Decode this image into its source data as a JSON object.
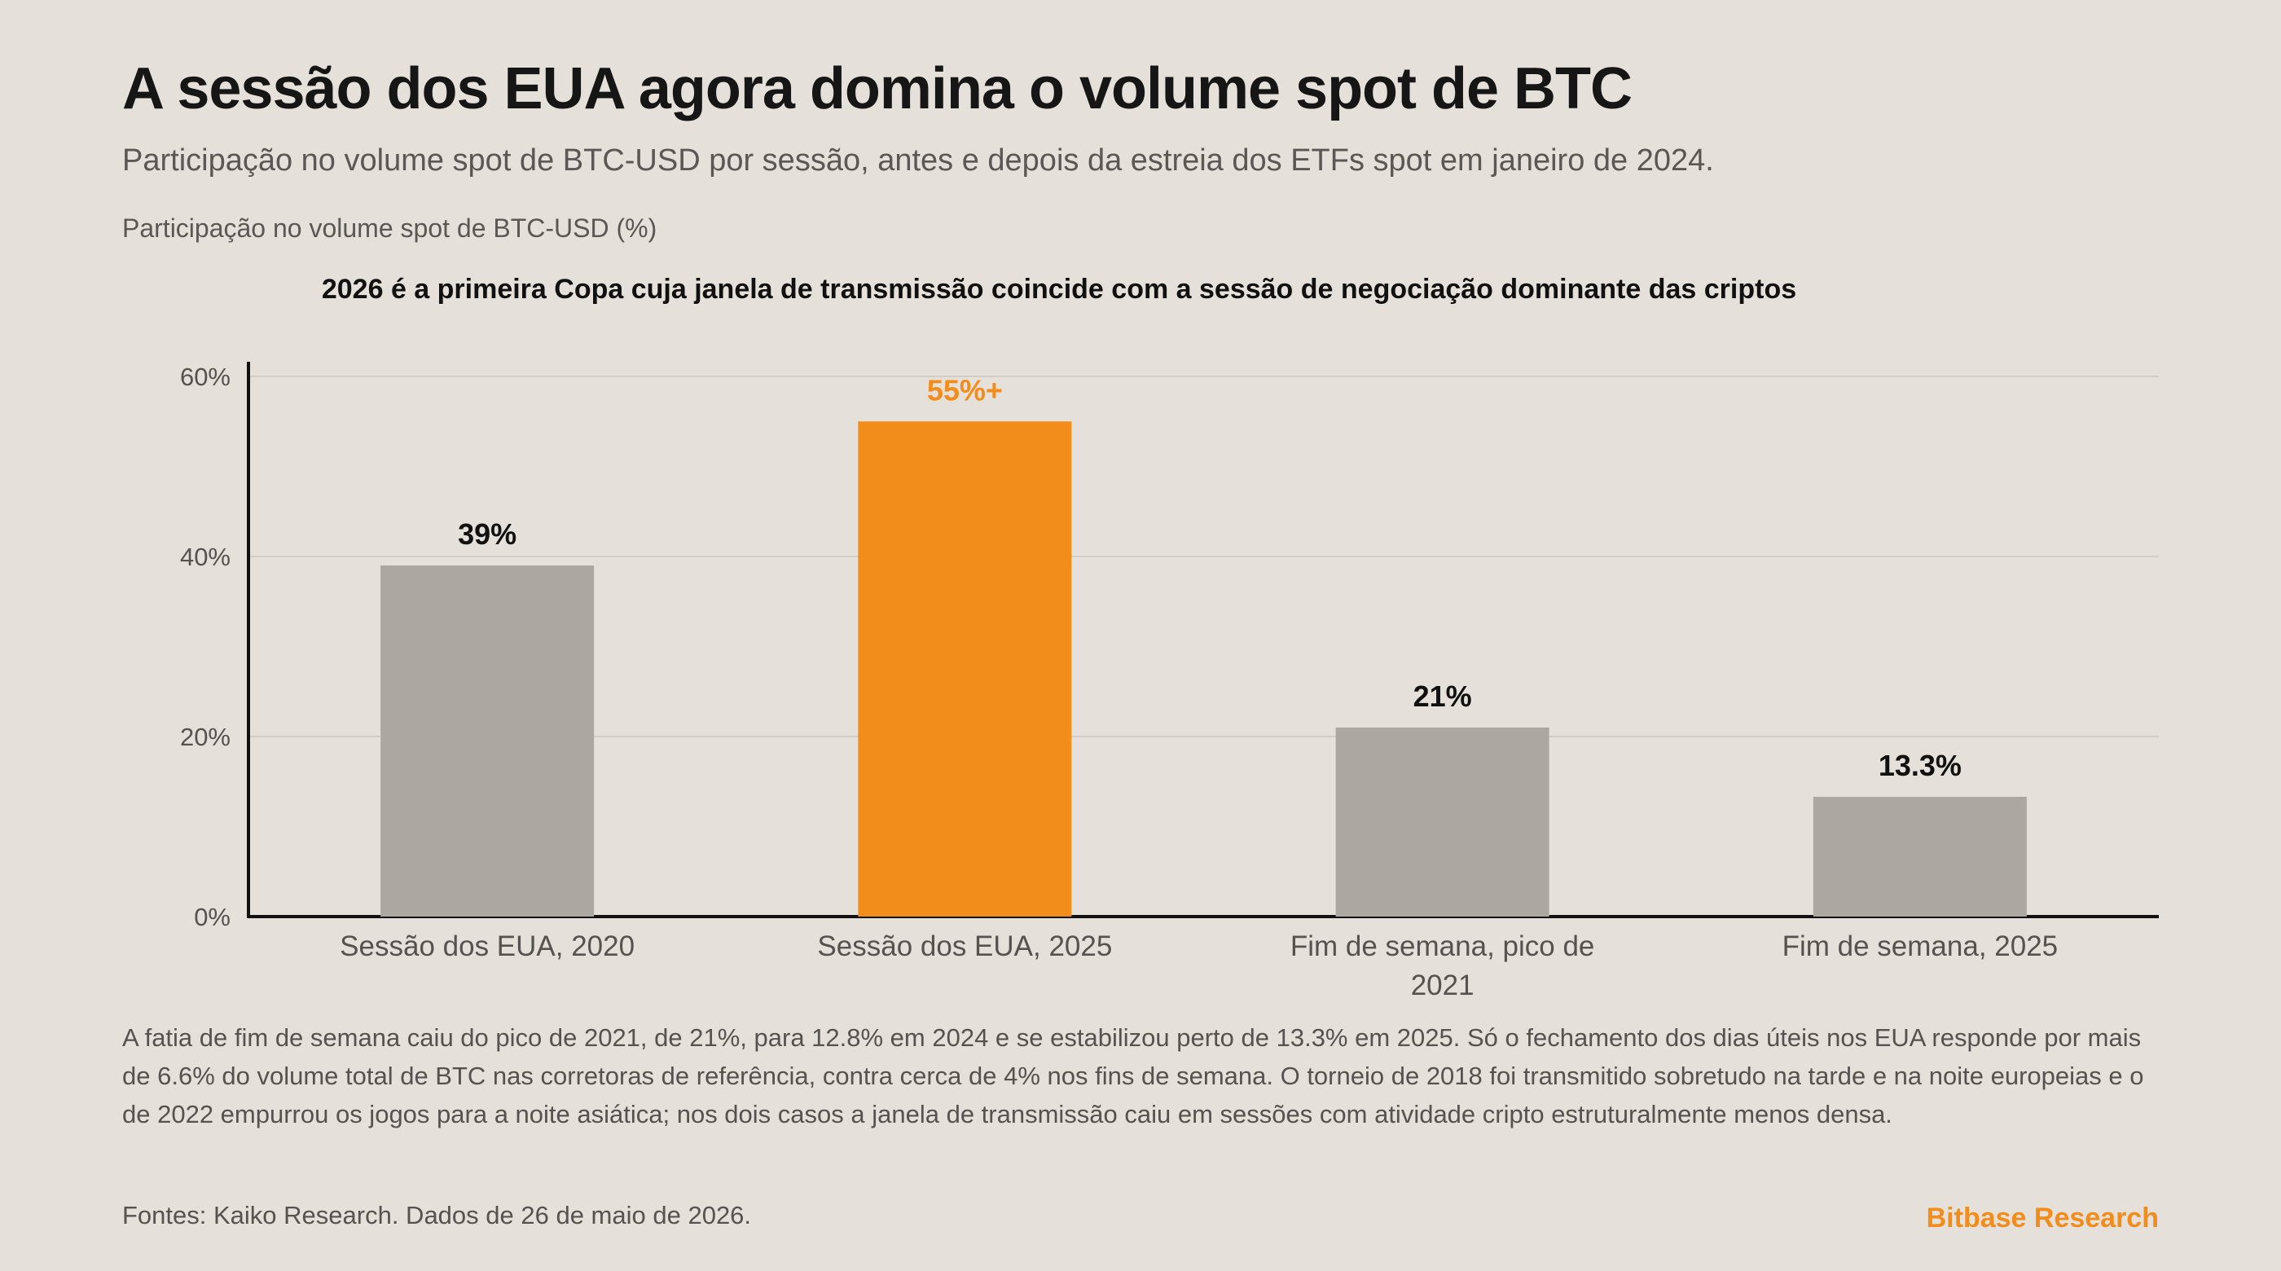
{
  "header": {
    "title": "A sessão dos EUA agora domina o volume spot de BTC",
    "subtitle": "Participação no volume spot de BTC-USD por sessão, antes e depois da estreia dos ETFs spot em janeiro de 2024."
  },
  "chart_data": {
    "type": "bar",
    "ylabel": "Participação no volume spot de BTC-USD (%)",
    "annotation": "2026 é a primeira Copa cuja janela de transmissão coincide com a sessão de negociação dominante das criptos",
    "categories": [
      [
        "Sessão dos EUA, 2020"
      ],
      [
        "Sessão dos EUA, 2025"
      ],
      [
        "Fim de semana, pico de",
        "2021"
      ],
      [
        "Fim de semana, 2025"
      ]
    ],
    "values": [
      39,
      55,
      21,
      13.3
    ],
    "value_labels": [
      "39%",
      "55%+",
      "21%",
      "13.3%"
    ],
    "highlight_index": 1,
    "ylim": [
      0,
      60
    ],
    "yticks": [
      0,
      20,
      40,
      60
    ],
    "ytick_labels": [
      "0%",
      "20%",
      "40%",
      "60%"
    ],
    "grid": true,
    "legend": "none",
    "colors": {
      "bar": "#aca7a0",
      "highlight": "#f28c1b",
      "highlight_label": "#f28c1b",
      "label": "#111111",
      "grid": "#d2cdc7",
      "axis": "#111111",
      "tick_text": "#555250"
    }
  },
  "footer": {
    "note": "A fatia de fim de semana caiu do pico de 2021, de 21%, para 12.8% em 2024 e se estabilizou perto de 13.3% em 2025. Só o fechamento dos dias úteis nos EUA responde por mais de 6.6% do volume total de BTC nas corretoras de referência, contra cerca de 4% nos fins de semana. O torneio de 2018 foi transmitido sobretudo na tarde e na noite europeias e o de 2022 empurrou os jogos para a noite asiática; nos dois casos a janela de transmissão caiu em sessões com atividade cripto estruturalmente menos densa.",
    "source": "Fontes: Kaiko Research. Dados de 26 de maio de 2026.",
    "brand": "Bitbase Research"
  }
}
